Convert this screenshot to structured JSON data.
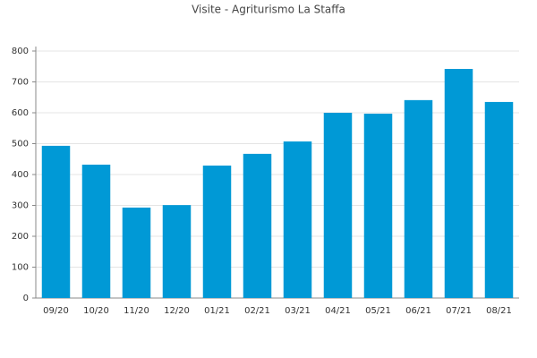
{
  "chart_data": {
    "type": "bar",
    "title": "Visite - Agriturismo La Staffa",
    "categories": [
      "09/20",
      "10/20",
      "11/20",
      "12/20",
      "01/21",
      "02/21",
      "03/21",
      "04/21",
      "05/21",
      "06/21",
      "07/21",
      "08/21"
    ],
    "values": [
      493,
      432,
      293,
      301,
      429,
      467,
      507,
      600,
      597,
      641,
      742,
      635
    ],
    "color": "#0099d6",
    "ylim": [
      0,
      800
    ],
    "yticks": [
      0,
      100,
      200,
      300,
      400,
      500,
      600,
      700,
      800
    ],
    "grid": true
  }
}
